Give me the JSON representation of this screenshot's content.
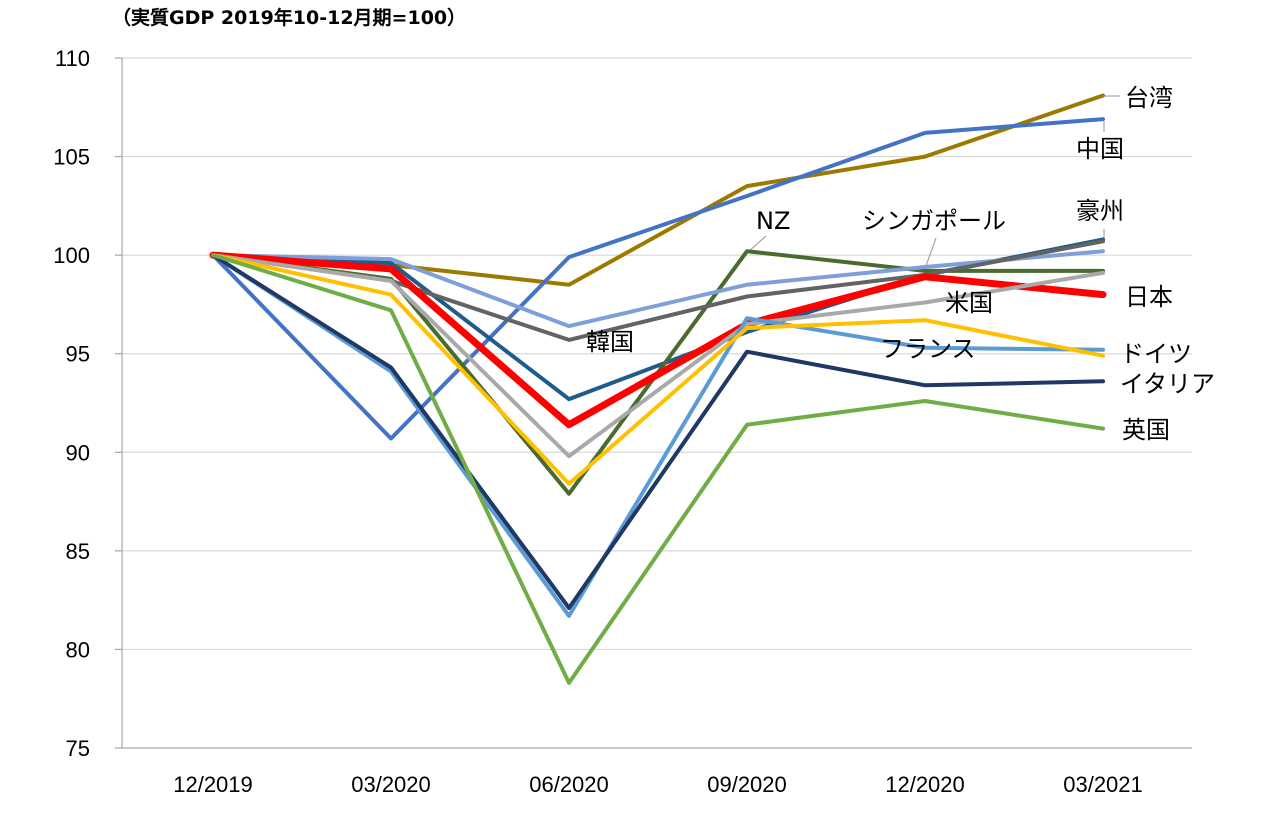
{
  "chart_data": {
    "type": "line",
    "subtitle": "（実質GDP 2019年10-12月期=100）",
    "xlabel": "",
    "ylabel": "",
    "x": [
      "12/2019",
      "03/2020",
      "06/2020",
      "09/2020",
      "12/2020",
      "03/2021"
    ],
    "y_ticks": [
      "75",
      "80",
      "85",
      "90",
      "95",
      "100",
      "105",
      "110"
    ],
    "ylim": [
      75,
      110
    ],
    "grid": "horizontal",
    "legend": "none (direct labels)",
    "series": [
      {
        "name": "台湾",
        "color": "#9C7A00",
        "width": 4,
        "values": [
          100,
          99.5,
          98.5,
          103.5,
          105.0,
          108.1
        ]
      },
      {
        "name": "中国",
        "color": "#4472C4",
        "width": 4,
        "values": [
          100,
          90.7,
          99.9,
          103.0,
          106.2,
          106.9
        ]
      },
      {
        "name": "豪州",
        "color": "#1F5C8B",
        "width": 4,
        "values": [
          100,
          99.6,
          92.7,
          96.1,
          99.0,
          100.8
        ]
      },
      {
        "name": "NZ",
        "color": "#4A6B2E",
        "width": 4,
        "values": [
          100,
          98.8,
          87.9,
          100.2,
          99.2,
          99.2
        ]
      },
      {
        "name": "シンガポール",
        "color": "#7F9FDA",
        "width": 4,
        "values": [
          100,
          99.8,
          96.4,
          98.5,
          99.4,
          100.2
        ]
      },
      {
        "name": "韓国",
        "color": "#636363",
        "width": 4,
        "values": [
          100,
          98.7,
          95.7,
          97.9,
          99.0,
          100.7
        ]
      },
      {
        "name": "日本",
        "color": "#FF0000",
        "width": 7,
        "values": [
          100,
          99.3,
          91.4,
          96.5,
          98.9,
          98.0
        ]
      },
      {
        "name": "米国",
        "color": "#A9A9A9",
        "width": 4,
        "values": [
          100,
          98.7,
          89.8,
          96.5,
          97.6,
          99.1
        ]
      },
      {
        "name": "フランス",
        "color": "#5B9BD5",
        "width": 4,
        "values": [
          100,
          94.1,
          81.7,
          96.8,
          95.3,
          95.2
        ]
      },
      {
        "name": "ドイツ",
        "color": "#FFC000",
        "width": 4,
        "values": [
          100,
          98.0,
          88.4,
          96.3,
          96.7,
          94.9
        ]
      },
      {
        "name": "イタリア",
        "color": "#1F3864",
        "width": 4,
        "values": [
          100,
          94.3,
          82.1,
          95.1,
          93.4,
          93.6
        ]
      },
      {
        "name": "英国",
        "color": "#70AD47",
        "width": 4,
        "values": [
          100,
          97.2,
          78.3,
          91.4,
          92.6,
          91.2
        ]
      }
    ],
    "labels": [
      {
        "text": "台湾",
        "series": "台湾"
      },
      {
        "text": "中国",
        "series": "中国"
      },
      {
        "text": "豪州",
        "series": "豪州"
      },
      {
        "text": "NZ",
        "series": "NZ"
      },
      {
        "text": "シンガポール",
        "series": "シンガポール"
      },
      {
        "text": "韓国",
        "series": "韓国"
      },
      {
        "text": "日本",
        "series": "日本"
      },
      {
        "text": "米国",
        "series": "米国"
      },
      {
        "text": "フランス",
        "series": "フランス"
      },
      {
        "text": "ドイツ",
        "series": "ドイツ"
      },
      {
        "text": "イタリア",
        "series": "イタリア"
      },
      {
        "text": "英国",
        "series": "英国"
      }
    ]
  }
}
